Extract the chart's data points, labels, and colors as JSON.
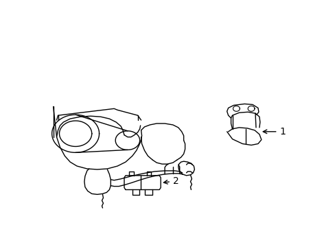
{
  "background_color": "#ffffff",
  "line_color": "#000000",
  "line_width": 1.0,
  "fig_width": 4.89,
  "fig_height": 3.6,
  "dpi": 100,
  "label_fontsize": 10
}
